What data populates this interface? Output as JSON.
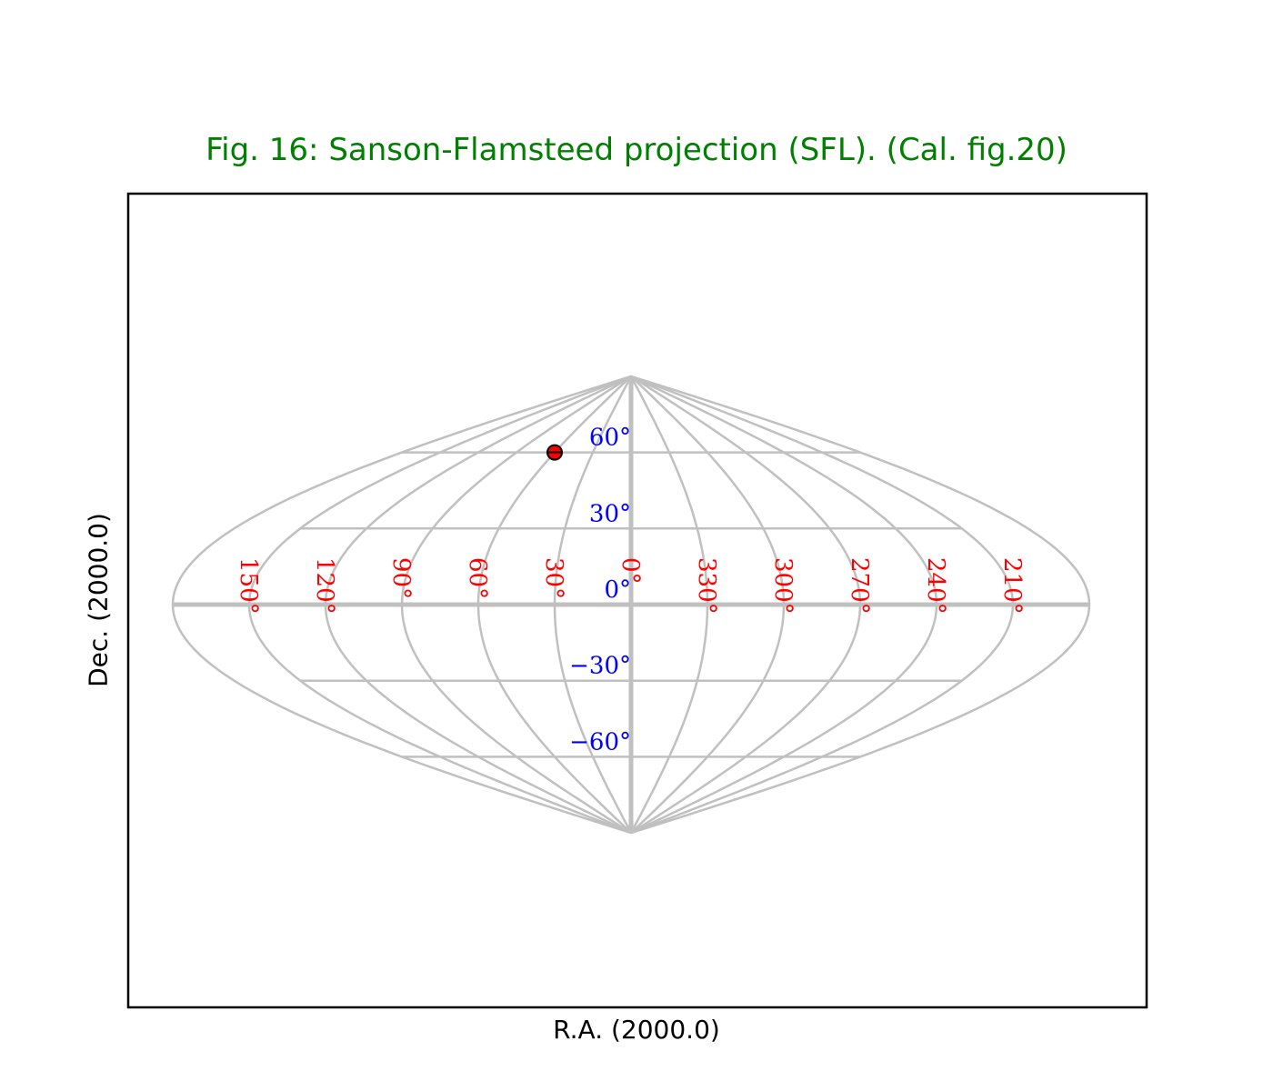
{
  "chart_data": {
    "type": "scatter",
    "title": "Fig. 16: Sanson-Flamsteed projection (SFL). (Cal. fig.20)",
    "xlabel": "R.A. (2000.0)",
    "ylabel": "Dec. (2000.0)",
    "projection": "SFL",
    "grid": true,
    "ra_ticks": [
      150,
      120,
      90,
      60,
      30,
      0,
      330,
      300,
      270,
      240,
      210
    ],
    "ra_tick_labels": [
      "150°",
      "120°",
      "90°",
      "60°",
      "30°",
      "0°",
      "330°",
      "300°",
      "270°",
      "240°",
      "210°"
    ],
    "dec_ticks": [
      60,
      30,
      0,
      -30,
      -60
    ],
    "dec_tick_labels": [
      "60°",
      "30°",
      "0°",
      "−30°",
      "−60°"
    ],
    "points": [
      {
        "ra": 60,
        "dec": 60
      }
    ],
    "colors": {
      "title": "#008000",
      "grid": "#c0c0c0",
      "ra_labels": "#ff0000",
      "dec_labels": "#0000ff",
      "marker_fill": "#ff0000",
      "marker_edge": "#000000"
    }
  }
}
